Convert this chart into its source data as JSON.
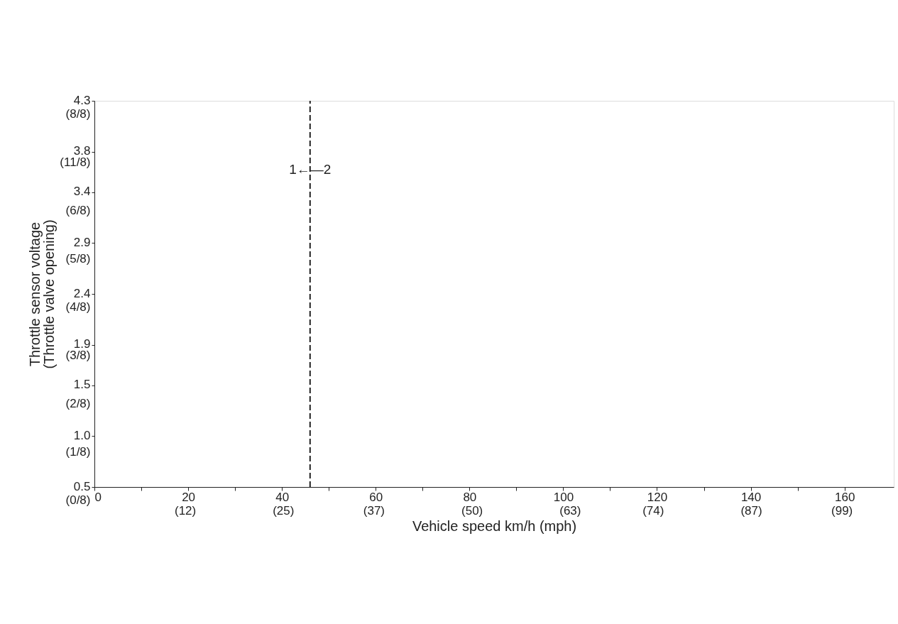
{
  "chart_data": {
    "type": "line",
    "xlabel": "Vehicle speed km/h (mph)",
    "ylabel": "Throttle sensor voltage\n(Throttle valve opening)",
    "xlim": [
      0,
      170.5
    ],
    "ylim": [
      0.5,
      4.3
    ],
    "xticks": [
      0,
      {
        "value": 10,
        "label": null
      },
      20,
      {
        "value": 30,
        "label": null
      },
      40,
      {
        "value": 50,
        "label": null
      },
      60,
      {
        "value": 70,
        "label": null
      },
      80,
      {
        "value": 90,
        "label": null
      },
      100,
      {
        "value": 110,
        "label": null
      },
      120,
      {
        "value": 130,
        "label": null
      },
      140,
      {
        "value": 150,
        "label": null
      },
      160
    ],
    "x2lim": [
      0,
      105.9
    ],
    "x2ticks": [
      {
        "value": 12,
        "label": "(12)"
      },
      {
        "value": 25,
        "label": "(25)"
      },
      {
        "value": 37,
        "label": "(37)"
      },
      {
        "value": 50,
        "label": "(50)"
      },
      {
        "value": 63,
        "label": "(63)"
      },
      {
        "value": 74,
        "label": "(74)"
      },
      {
        "value": 87,
        "label": "(87)"
      },
      {
        "value": 99,
        "label": "(99)"
      }
    ],
    "yticks": [
      0.5,
      {
        "value": 1.0,
        "label": "1.0"
      },
      1.5,
      1.9,
      2.4,
      2.9,
      3.4,
      3.8,
      4.3
    ],
    "y2_categories": [
      "(8/8)",
      "(11/8)",
      "(6/8)",
      "(5/8)",
      "(4/8)",
      "(3/8)",
      "(2/8)",
      "(1/8)",
      "(0/8)"
    ],
    "ref_lines": [
      {
        "axis": "x",
        "value": 46,
        "line_style": "dashed",
        "color": "#222222"
      }
    ],
    "annotations": [
      {
        "text": "1←—2",
        "x": 46,
        "y": 3.62
      }
    ],
    "grid": false
  }
}
